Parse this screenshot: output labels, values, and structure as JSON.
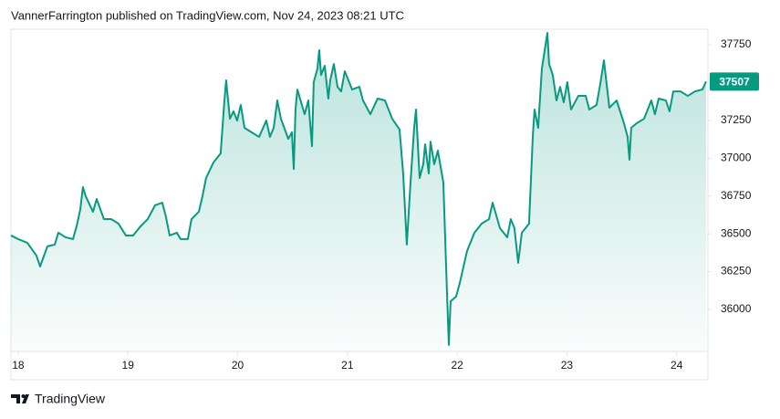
{
  "chart_data": {
    "type": "area",
    "title": "VannerFarrington published on TradingView.com, Nov 24, 2023 08:21 UTC",
    "source": "TradingView",
    "color": "#089981",
    "x": [
      17.934,
      18.0,
      18.083,
      18.166,
      18.2,
      18.266,
      18.333,
      18.366,
      18.432,
      18.499,
      18.532,
      18.565,
      18.59,
      18.615,
      18.682,
      18.715,
      18.781,
      18.848,
      18.914,
      18.981,
      19.047,
      19.114,
      19.18,
      19.247,
      19.313,
      19.347,
      19.38,
      19.446,
      19.48,
      19.546,
      19.579,
      19.646,
      19.679,
      19.712,
      19.779,
      19.845,
      19.879,
      19.895,
      19.929,
      19.962,
      19.995,
      20.028,
      20.062,
      20.128,
      20.195,
      20.261,
      20.294,
      20.328,
      20.361,
      20.394,
      20.461,
      20.494,
      20.511,
      20.527,
      20.544,
      20.61,
      20.644,
      20.677,
      20.693,
      20.727,
      20.743,
      20.76,
      20.793,
      20.826,
      20.843,
      20.876,
      20.91,
      20.943,
      20.976,
      21.043,
      21.109,
      21.142,
      21.209,
      21.275,
      21.342,
      21.408,
      21.475,
      21.508,
      21.541,
      21.575,
      21.608,
      21.625,
      21.658,
      21.691,
      21.708,
      21.741,
      21.757,
      21.791,
      21.824,
      21.874,
      21.907,
      21.924,
      21.94,
      21.99,
      22.024,
      22.09,
      22.157,
      22.223,
      22.29,
      22.323,
      22.39,
      22.456,
      22.489,
      22.522,
      22.556,
      22.589,
      22.655,
      22.689,
      22.705,
      22.738,
      22.772,
      22.822,
      22.838,
      22.871,
      22.905,
      22.938,
      22.971,
      23.004,
      23.038,
      23.104,
      23.171,
      23.204,
      23.27,
      23.304,
      23.337,
      23.387,
      23.453,
      23.52,
      23.553,
      23.57,
      23.586,
      23.636,
      23.703,
      23.769,
      23.802,
      23.836,
      23.902,
      23.935,
      23.969,
      24.035,
      24.101,
      24.168,
      24.235,
      24.268
    ],
    "values": [
      36489,
      36465,
      36441,
      36356,
      36284,
      36417,
      36429,
      36507,
      36477,
      36465,
      36549,
      36658,
      36809,
      36748,
      36646,
      36730,
      36597,
      36597,
      36567,
      36489,
      36489,
      36549,
      36597,
      36688,
      36706,
      36610,
      36489,
      36507,
      36465,
      36465,
      36597,
      36646,
      36748,
      36869,
      36972,
      37032,
      37382,
      37515,
      37261,
      37310,
      37249,
      37352,
      37201,
      37171,
      37141,
      37249,
      37141,
      37201,
      37382,
      37261,
      37128,
      37171,
      36929,
      37322,
      37454,
      37291,
      37382,
      37080,
      37503,
      37593,
      37714,
      37551,
      37611,
      37394,
      37515,
      37623,
      37472,
      37442,
      37575,
      37454,
      37472,
      37382,
      37291,
      37394,
      37382,
      37261,
      37189,
      36899,
      36429,
      36839,
      37201,
      37322,
      36869,
      36960,
      37092,
      36899,
      37110,
      36960,
      37050,
      36839,
      36115,
      35765,
      36054,
      36085,
      36175,
      36386,
      36507,
      36567,
      36597,
      36706,
      36537,
      36477,
      36597,
      36537,
      36308,
      36507,
      36567,
      37141,
      37322,
      37201,
      37593,
      37828,
      37623,
      37551,
      37382,
      37472,
      37370,
      37503,
      37322,
      37412,
      37412,
      37322,
      37352,
      37491,
      37647,
      37334,
      37382,
      37231,
      37141,
      36990,
      37201,
      37231,
      37261,
      37382,
      37291,
      37394,
      37382,
      37310,
      37442,
      37442,
      37412,
      37442,
      37454,
      37507
    ],
    "xlim": [
      17.934,
      24.285
    ],
    "xticks": [
      18,
      19,
      20,
      21,
      22,
      23,
      24
    ],
    "ylim": [
      35722,
      37853
    ],
    "yticks": [
      36000,
      36250,
      36500,
      36750,
      37000,
      37250,
      37500,
      37750
    ]
  }
}
